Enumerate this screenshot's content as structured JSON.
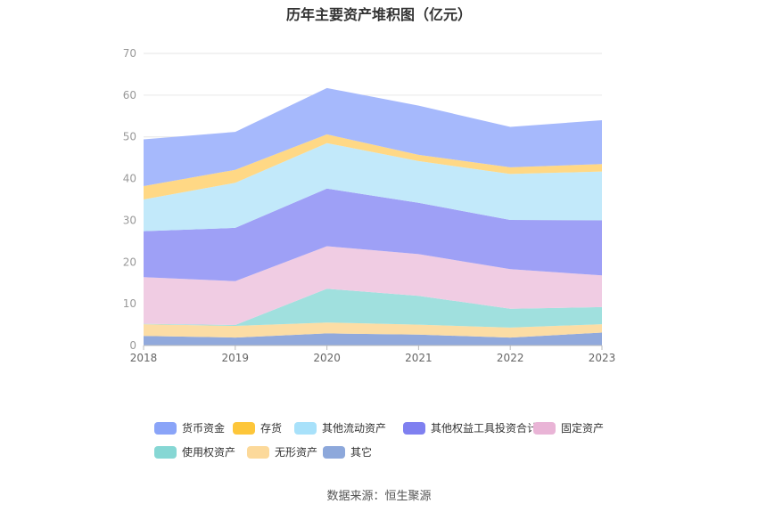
{
  "chart_data": {
    "type": "area",
    "stacked": true,
    "title": "历年主要资产堆积图（亿元）",
    "categories": [
      "2018",
      "2019",
      "2020",
      "2021",
      "2022",
      "2023"
    ],
    "ylim": [
      0,
      70
    ],
    "yticks": [
      0,
      10,
      20,
      30,
      40,
      50,
      60,
      70
    ],
    "grid": true,
    "legend_position": "bottom",
    "series": [
      {
        "name": "其它",
        "color": "#91A9DC",
        "values": [
          2.3,
          1.9,
          2.9,
          2.6,
          1.9,
          3.1
        ]
      },
      {
        "name": "无形资产",
        "color": "#FCDDA5",
        "values": [
          2.8,
          2.8,
          2.6,
          2.4,
          2.4,
          2.0
        ]
      },
      {
        "name": "使用权资产",
        "color": "#A0E0DE",
        "values": [
          0.1,
          0.2,
          8.1,
          6.9,
          4.5,
          4.1
        ]
      },
      {
        "name": "固定资产",
        "color": "#F0CCE3",
        "values": [
          11.2,
          10.5,
          10.2,
          10.0,
          9.5,
          7.6
        ]
      },
      {
        "name": "其他权益工具投资合计",
        "color": "#9EA0F6",
        "values": [
          11.0,
          12.8,
          13.8,
          12.3,
          11.8,
          13.2
        ]
      },
      {
        "name": "其他流动资产",
        "color": "#C2E9FA",
        "values": [
          7.6,
          10.8,
          10.9,
          10.0,
          11.0,
          11.7
        ]
      },
      {
        "name": "存货",
        "color": "#FFD885",
        "values": [
          3.2,
          3.1,
          2.1,
          1.5,
          1.6,
          1.8
        ]
      },
      {
        "name": "货币资金",
        "color": "#A6B9FC",
        "values": [
          11.2,
          9.1,
          11.1,
          11.8,
          9.7,
          10.5
        ]
      }
    ]
  },
  "legend": {
    "items": [
      {
        "label": "货币资金",
        "color": "#8AA4F8"
      },
      {
        "label": "存货",
        "color": "#FDC63A"
      },
      {
        "label": "其他流动资产",
        "color": "#A8E1FA"
      },
      {
        "label": "其他权益工具投资合计",
        "color": "#7F80F0"
      },
      {
        "label": "固定资产",
        "color": "#E9B4D6"
      },
      {
        "label": "使用权资产",
        "color": "#86D7D4"
      },
      {
        "label": "无形资产",
        "color": "#FCD99A"
      },
      {
        "label": "其它",
        "color": "#8DA8DB"
      }
    ]
  },
  "source": "数据来源：恒生聚源"
}
